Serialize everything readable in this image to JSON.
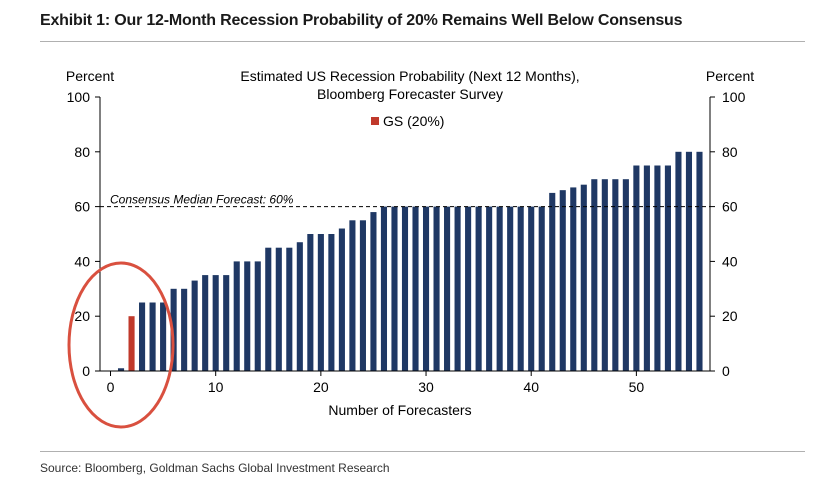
{
  "exhibit_title": "Exhibit 1: Our 12-Month Recession Probability of 20% Remains Well Below Consensus",
  "source": "Source: Bloomberg, Goldman Sachs Global Investment Research",
  "colors": {
    "bar": "#1f3864",
    "highlight": "#c0392b",
    "circle": "#d9503f"
  },
  "chart_data": {
    "type": "bar",
    "title": "Estimated US Recession Probability (Next 12 Months),",
    "subtitle": "Bloomberg Forecaster Survey",
    "xlabel": "Number of Forecasters",
    "ylabel_left": "Percent",
    "ylabel_right": "Percent",
    "xlim": [
      -1,
      57
    ],
    "ylim": [
      0,
      100
    ],
    "xticks": [
      0,
      10,
      20,
      30,
      40,
      50
    ],
    "yticks": [
      0,
      20,
      40,
      60,
      80,
      100
    ],
    "grid": false,
    "legend": {
      "position": "top-center",
      "entries": [
        {
          "label": "GS (20%)",
          "color": "#c0392b"
        }
      ]
    },
    "highlight_x": 2,
    "x": [
      1,
      2,
      3,
      4,
      5,
      6,
      7,
      8,
      9,
      10,
      11,
      12,
      13,
      14,
      15,
      16,
      17,
      18,
      19,
      20,
      21,
      22,
      23,
      24,
      25,
      26,
      27,
      28,
      29,
      30,
      31,
      32,
      33,
      34,
      35,
      36,
      37,
      38,
      39,
      40,
      41,
      42,
      43,
      44,
      45,
      46,
      47,
      48,
      49,
      50,
      51,
      52,
      53,
      54,
      55,
      56
    ],
    "values": [
      1,
      20,
      25,
      25,
      25,
      30,
      30,
      33,
      35,
      35,
      35,
      40,
      40,
      40,
      45,
      45,
      45,
      47,
      50,
      50,
      50,
      52,
      55,
      55,
      58,
      60,
      60,
      60,
      60,
      60,
      60,
      60,
      60,
      60,
      60,
      60,
      60,
      60,
      60,
      60,
      60,
      65,
      66,
      67,
      68,
      70,
      70,
      70,
      70,
      75,
      75,
      75,
      75,
      80,
      80,
      80
    ],
    "reference_line": {
      "value": 60,
      "label": "Consensus Median Forecast: 60%"
    }
  }
}
